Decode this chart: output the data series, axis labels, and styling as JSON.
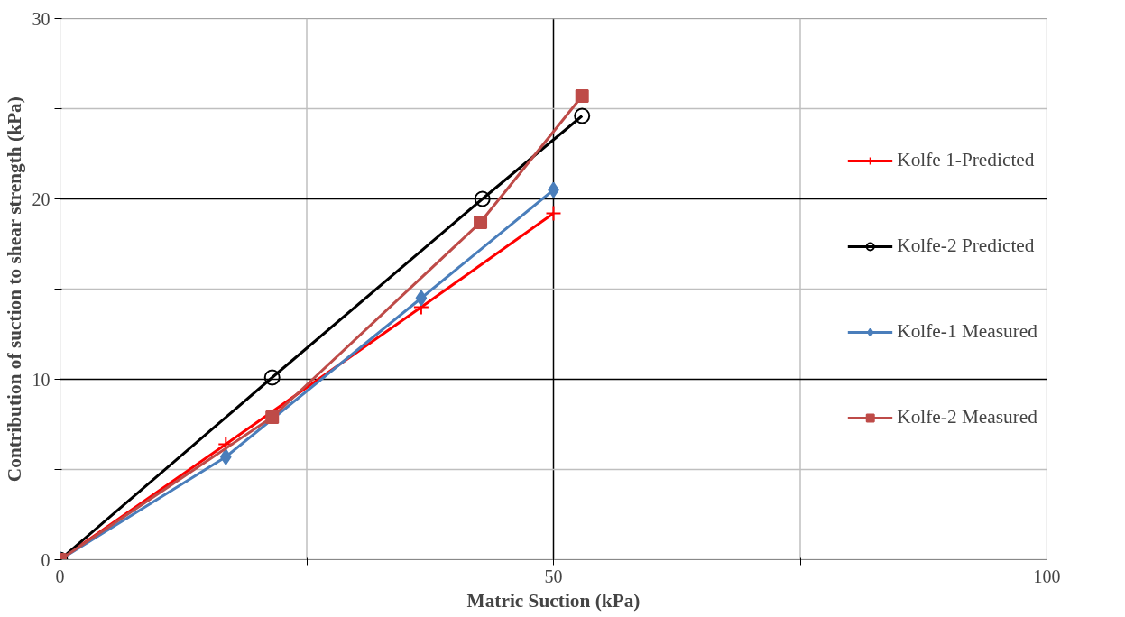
{
  "chart_data": {
    "type": "line",
    "xlabel": "Matric Suction (kPa)",
    "ylabel": "Contribution of suction to shear strength (kPa)",
    "xlim": [
      0,
      100
    ],
    "ylim": [
      0,
      30
    ],
    "xticks": [
      0,
      {
        "value": 25,
        "label": null
      },
      50,
      {
        "value": 75,
        "label": null
      },
      100
    ],
    "yticks": [
      0,
      {
        "value": 5,
        "label": null
      },
      10,
      {
        "value": 15,
        "label": null
      },
      20,
      {
        "value": 25,
        "label": null
      },
      30
    ],
    "grid": true,
    "legend": "right",
    "series": [
      {
        "name": "Kolfe 1-Predicted",
        "color": "#ff0000",
        "marker": "cross",
        "x": [
          0,
          16.8,
          36.6,
          50
        ],
        "values": [
          0,
          6.4,
          14.0,
          19.2
        ]
      },
      {
        "name": "Kolfe-2 Predicted",
        "color": "#000000",
        "marker": "circle",
        "x": [
          0,
          21.5,
          42.8,
          52.9
        ],
        "values": [
          0,
          10.1,
          20.0,
          24.6
        ]
      },
      {
        "name": "Kolfe-1 Measured",
        "color": "#4a7ebb",
        "marker": "diamond",
        "x": [
          0,
          16.8,
          36.6,
          50
        ],
        "values": [
          0,
          5.7,
          14.5,
          20.5
        ]
      },
      {
        "name": "Kolfe-2 Measured",
        "color": "#be4b48",
        "marker": "square",
        "x": [
          0,
          21.5,
          42.6,
          52.9
        ],
        "values": [
          0,
          7.9,
          18.7,
          25.7
        ]
      }
    ]
  }
}
